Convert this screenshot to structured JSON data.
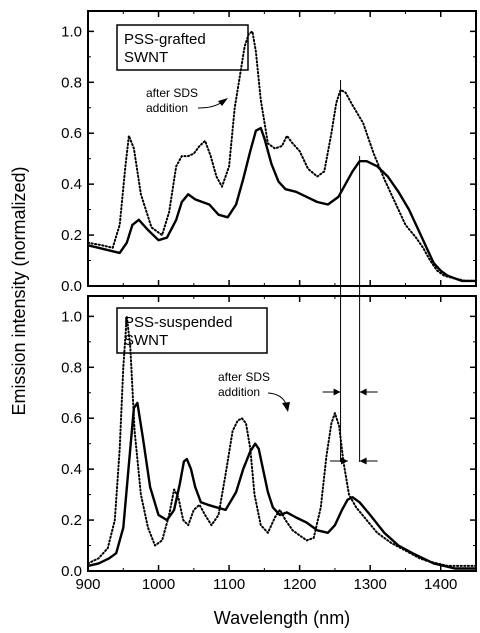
{
  "chart_data": [
    {
      "type": "line",
      "panel": "top",
      "box_label": [
        "PSS-grafted",
        "SWNT"
      ],
      "annotation": [
        "after SDS",
        "addition"
      ],
      "xlim": [
        900,
        1450
      ],
      "ylim": [
        0,
        1.08
      ],
      "yticks": [
        "0.0",
        "0.2",
        "0.4",
        "0.6",
        "0.8",
        "1.0"
      ],
      "ytick_values": [
        0,
        0.2,
        0.4,
        0.6,
        0.8,
        1.0
      ],
      "series": [
        {
          "style": "solid",
          "x": [
            900,
            915,
            930,
            945,
            955,
            963,
            972,
            985,
            1000,
            1012,
            1025,
            1033,
            1042,
            1052,
            1062,
            1072,
            1085,
            1098,
            1110,
            1120,
            1130,
            1138,
            1145,
            1150,
            1160,
            1170,
            1180,
            1195,
            1210,
            1225,
            1240,
            1255,
            1265,
            1275,
            1285,
            1295,
            1310,
            1325,
            1340,
            1355,
            1370,
            1380,
            1390,
            1400,
            1410,
            1420,
            1430,
            1440,
            1450
          ],
          "y": [
            0.16,
            0.15,
            0.14,
            0.13,
            0.17,
            0.24,
            0.26,
            0.22,
            0.18,
            0.19,
            0.26,
            0.33,
            0.36,
            0.34,
            0.33,
            0.32,
            0.28,
            0.27,
            0.32,
            0.42,
            0.53,
            0.61,
            0.62,
            0.58,
            0.48,
            0.41,
            0.38,
            0.37,
            0.35,
            0.33,
            0.32,
            0.35,
            0.4,
            0.45,
            0.49,
            0.49,
            0.47,
            0.43,
            0.37,
            0.3,
            0.21,
            0.15,
            0.09,
            0.06,
            0.04,
            0.03,
            0.02,
            0.02,
            0.02
          ]
        },
        {
          "style": "dotted",
          "x": [
            900,
            920,
            935,
            945,
            953,
            958,
            965,
            975,
            990,
            1005,
            1015,
            1025,
            1033,
            1042,
            1050,
            1058,
            1066,
            1074,
            1082,
            1090,
            1100,
            1108,
            1115,
            1122,
            1128,
            1133,
            1138,
            1145,
            1155,
            1165,
            1175,
            1182,
            1190,
            1200,
            1212,
            1225,
            1235,
            1245,
            1252,
            1258,
            1265,
            1275,
            1290,
            1305,
            1320,
            1335,
            1350,
            1365,
            1375,
            1385,
            1395,
            1405,
            1420,
            1435,
            1450
          ],
          "y": [
            0.17,
            0.16,
            0.15,
            0.24,
            0.47,
            0.59,
            0.54,
            0.36,
            0.23,
            0.2,
            0.29,
            0.47,
            0.51,
            0.51,
            0.52,
            0.55,
            0.57,
            0.51,
            0.43,
            0.39,
            0.47,
            0.7,
            0.82,
            0.94,
            0.99,
            1.0,
            0.92,
            0.73,
            0.56,
            0.54,
            0.55,
            0.59,
            0.56,
            0.53,
            0.46,
            0.43,
            0.45,
            0.6,
            0.72,
            0.77,
            0.76,
            0.71,
            0.64,
            0.52,
            0.42,
            0.33,
            0.24,
            0.19,
            0.15,
            0.1,
            0.06,
            0.04,
            0.03,
            0.02,
            0.02
          ]
        }
      ]
    },
    {
      "type": "line",
      "panel": "bottom",
      "box_label": [
        "PSS-suspended",
        "SWNT"
      ],
      "annotation": [
        "after SDS",
        "addition"
      ],
      "xlabel": "Wavelength  (nm)",
      "xlim": [
        900,
        1450
      ],
      "ylim": [
        0,
        1.08
      ],
      "xticks": [
        "900",
        "1000",
        "1100",
        "1200",
        "1300",
        "1400"
      ],
      "xtick_values": [
        900,
        1000,
        1100,
        1200,
        1300,
        1400
      ],
      "yticks": [
        "0.0",
        "0.2",
        "0.4",
        "0.6",
        "0.8",
        "1.0"
      ],
      "ytick_values": [
        0,
        0.2,
        0.4,
        0.6,
        0.8,
        1.0
      ],
      "series": [
        {
          "style": "solid",
          "x": [
            900,
            915,
            930,
            940,
            950,
            958,
            965,
            970,
            978,
            988,
            1000,
            1012,
            1022,
            1030,
            1036,
            1040,
            1046,
            1052,
            1060,
            1070,
            1082,
            1095,
            1110,
            1120,
            1130,
            1137,
            1142,
            1148,
            1155,
            1162,
            1172,
            1182,
            1195,
            1210,
            1225,
            1240,
            1250,
            1260,
            1268,
            1275,
            1285,
            1300,
            1320,
            1340,
            1360,
            1375,
            1390,
            1405,
            1420,
            1435,
            1450
          ],
          "y": [
            0.02,
            0.03,
            0.05,
            0.07,
            0.17,
            0.42,
            0.64,
            0.66,
            0.52,
            0.33,
            0.22,
            0.2,
            0.24,
            0.34,
            0.43,
            0.44,
            0.4,
            0.33,
            0.27,
            0.26,
            0.25,
            0.24,
            0.31,
            0.4,
            0.47,
            0.5,
            0.48,
            0.4,
            0.31,
            0.25,
            0.22,
            0.23,
            0.21,
            0.19,
            0.16,
            0.15,
            0.18,
            0.24,
            0.28,
            0.29,
            0.27,
            0.22,
            0.15,
            0.1,
            0.07,
            0.05,
            0.03,
            0.02,
            0.01,
            0.01,
            0.01
          ]
        },
        {
          "style": "dotted",
          "x": [
            900,
            915,
            928,
            938,
            945,
            950,
            955,
            960,
            966,
            975,
            985,
            995,
            1005,
            1015,
            1022,
            1028,
            1035,
            1042,
            1050,
            1058,
            1066,
            1075,
            1085,
            1095,
            1105,
            1112,
            1118,
            1124,
            1130,
            1136,
            1145,
            1155,
            1165,
            1172,
            1180,
            1190,
            1200,
            1210,
            1220,
            1230,
            1238,
            1245,
            1250,
            1256,
            1262,
            1270,
            1280,
            1295,
            1310,
            1330,
            1350,
            1370,
            1380,
            1395,
            1410,
            1425,
            1450
          ],
          "y": [
            0.03,
            0.05,
            0.09,
            0.2,
            0.48,
            0.8,
            1.0,
            0.88,
            0.55,
            0.3,
            0.17,
            0.1,
            0.12,
            0.22,
            0.32,
            0.29,
            0.2,
            0.18,
            0.24,
            0.26,
            0.22,
            0.18,
            0.22,
            0.38,
            0.55,
            0.59,
            0.6,
            0.58,
            0.48,
            0.3,
            0.18,
            0.15,
            0.21,
            0.24,
            0.2,
            0.16,
            0.14,
            0.12,
            0.13,
            0.25,
            0.45,
            0.58,
            0.62,
            0.57,
            0.43,
            0.3,
            0.25,
            0.2,
            0.15,
            0.11,
            0.08,
            0.05,
            0.04,
            0.03,
            0.02,
            0.02,
            0.02
          ]
        }
      ]
    }
  ],
  "ylabel": "Emission intensity  (normalized)",
  "reference_lines_nm": [
    1258,
    1285
  ]
}
